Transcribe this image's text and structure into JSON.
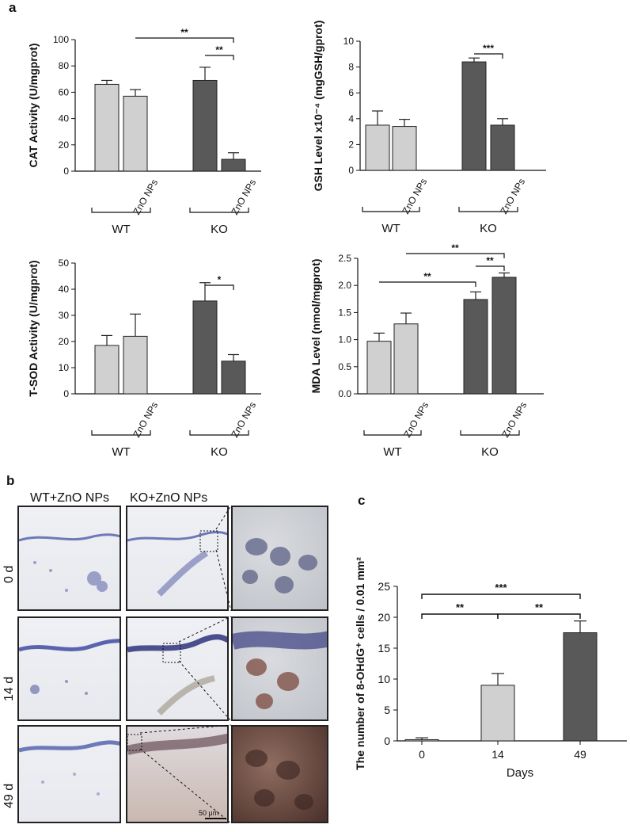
{
  "panel_labels": {
    "a": "a",
    "b": "b",
    "c": "c"
  },
  "colors": {
    "light_bar": "#d0d0d0",
    "dark_bar": "#595959",
    "axis": "#111111"
  },
  "chart_data": [
    {
      "id": "cat",
      "type": "bar",
      "ylabel": "CAT Activity (U/mgprot)",
      "ylim": [
        0,
        100
      ],
      "yticks": [
        0,
        20,
        40,
        60,
        80,
        100
      ],
      "values": [
        66,
        57,
        69,
        9
      ],
      "errors": [
        3,
        5,
        10,
        5
      ],
      "bar_colors": [
        "light",
        "light",
        "dark",
        "dark"
      ],
      "bar_tick_labels": [
        "",
        "ZnO NPs",
        "",
        "ZnO NPs"
      ],
      "groups": [
        "WT",
        "KO"
      ],
      "significance": [
        {
          "from": 1,
          "to": 3,
          "label": "**"
        },
        {
          "from": 2,
          "to": 3,
          "label": "**"
        }
      ]
    },
    {
      "id": "gsh",
      "type": "bar",
      "ylabel": "GSH Level x10⁻⁴ (mgGSH/gprot)",
      "ylim": [
        0,
        10
      ],
      "yticks": [
        0,
        2,
        4,
        6,
        8,
        10
      ],
      "values": [
        3.5,
        3.4,
        8.4,
        3.5
      ],
      "errors": [
        1.1,
        0.55,
        0.3,
        0.5
      ],
      "bar_colors": [
        "light",
        "light",
        "dark",
        "dark"
      ],
      "bar_tick_labels": [
        "",
        "ZnO NPs",
        "",
        "ZnO NPs"
      ],
      "groups": [
        "WT",
        "KO"
      ],
      "significance": [
        {
          "from": 2,
          "to": 3,
          "label": "***"
        }
      ]
    },
    {
      "id": "tsod",
      "type": "bar",
      "ylabel": "T-SOD Activity (U/mgprot)",
      "ylim": [
        0,
        50
      ],
      "yticks": [
        0,
        10,
        20,
        30,
        40,
        50
      ],
      "values": [
        18.5,
        22,
        35.5,
        12.5
      ],
      "errors": [
        3.8,
        8.5,
        7,
        2.5
      ],
      "bar_colors": [
        "light",
        "light",
        "dark",
        "dark"
      ],
      "bar_tick_labels": [
        "",
        "ZnO NPs",
        "",
        "ZnO NPs"
      ],
      "groups": [
        "WT",
        "KO"
      ],
      "significance": [
        {
          "from": 2,
          "to": 3,
          "label": "*"
        }
      ]
    },
    {
      "id": "mda",
      "type": "bar",
      "ylabel": "MDA Level (nmol/mgprot)",
      "ylim": [
        0,
        2.5
      ],
      "yticks": [
        "0.0",
        "0.5",
        "1.0",
        "1.5",
        "2.0",
        "2.5"
      ],
      "values": [
        0.97,
        1.29,
        1.74,
        2.15
      ],
      "errors": [
        0.15,
        0.2,
        0.14,
        0.08
      ],
      "bar_colors": [
        "light",
        "light",
        "dark",
        "dark"
      ],
      "bar_tick_labels": [
        "",
        "ZnO NPs",
        "",
        "ZnO NPs"
      ],
      "groups": [
        "WT",
        "KO"
      ],
      "significance": [
        {
          "from": 0,
          "to": 2,
          "label": "**"
        },
        {
          "from": 1,
          "to": 3,
          "label": "**"
        },
        {
          "from": 2,
          "to": 3,
          "label": "**"
        }
      ]
    },
    {
      "id": "ohdg",
      "type": "bar",
      "ylabel": "The number of 8-OHdG⁺ cells / 0.01 mm²",
      "xlabel": "Days",
      "ylim": [
        0,
        25
      ],
      "yticks": [
        0,
        5,
        10,
        15,
        20,
        25
      ],
      "categories": [
        "0",
        "14",
        "49"
      ],
      "values": [
        0.2,
        9,
        17.5
      ],
      "errors": [
        0.3,
        1.9,
        1.9
      ],
      "bar_colors": [
        "light",
        "light",
        "dark"
      ],
      "significance": [
        {
          "from": 0,
          "to": 2,
          "label": "***"
        },
        {
          "from": 0,
          "to": 1,
          "label": "**"
        },
        {
          "from": 1,
          "to": 2,
          "label": "**"
        }
      ]
    }
  ],
  "micrographs": {
    "columns": [
      "WT+ZnO NPs",
      "KO+ZnO NPs"
    ],
    "rows": [
      "0 d",
      "14 d",
      "49 d"
    ],
    "scale_bar": "50 μm"
  }
}
